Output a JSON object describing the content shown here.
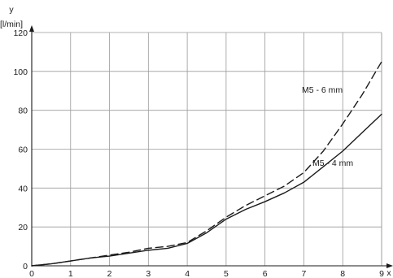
{
  "chart_data": {
    "type": "line",
    "xlabel": "x",
    "ylabel": "y",
    "yunit": "[l/min]",
    "xlim": [
      0,
      9
    ],
    "ylim": [
      0,
      120
    ],
    "xticks": [
      0,
      1,
      2,
      3,
      4,
      5,
      6,
      7,
      8,
      9
    ],
    "yticks": [
      0,
      20,
      40,
      60,
      80,
      100,
      120
    ],
    "grid": true,
    "series": [
      {
        "name": "M5 - 4 mm",
        "style": "solid",
        "x": [
          0,
          0.5,
          1,
          1.5,
          2,
          2.5,
          3,
          3.5,
          4,
          4.5,
          5,
          5.5,
          6,
          6.5,
          7,
          7.5,
          8,
          8.5,
          9
        ],
        "y": [
          0,
          1,
          2.5,
          4,
          5,
          6.5,
          8,
          9,
          11.5,
          17,
          24,
          29,
          33,
          37.5,
          43,
          51,
          59,
          68.5,
          78
        ]
      },
      {
        "name": "M5 - 6 mm",
        "style": "dashed",
        "x": [
          0,
          0.5,
          1,
          1.5,
          2,
          2.5,
          3,
          3.5,
          4,
          4.5,
          5,
          5.5,
          6,
          6.5,
          7,
          7.5,
          8,
          8.5,
          9
        ],
        "y": [
          0,
          1,
          2.5,
          4,
          5.5,
          7,
          9,
          10,
          12,
          18,
          25,
          31,
          36,
          41,
          48,
          59,
          73,
          88,
          105
        ]
      }
    ]
  }
}
